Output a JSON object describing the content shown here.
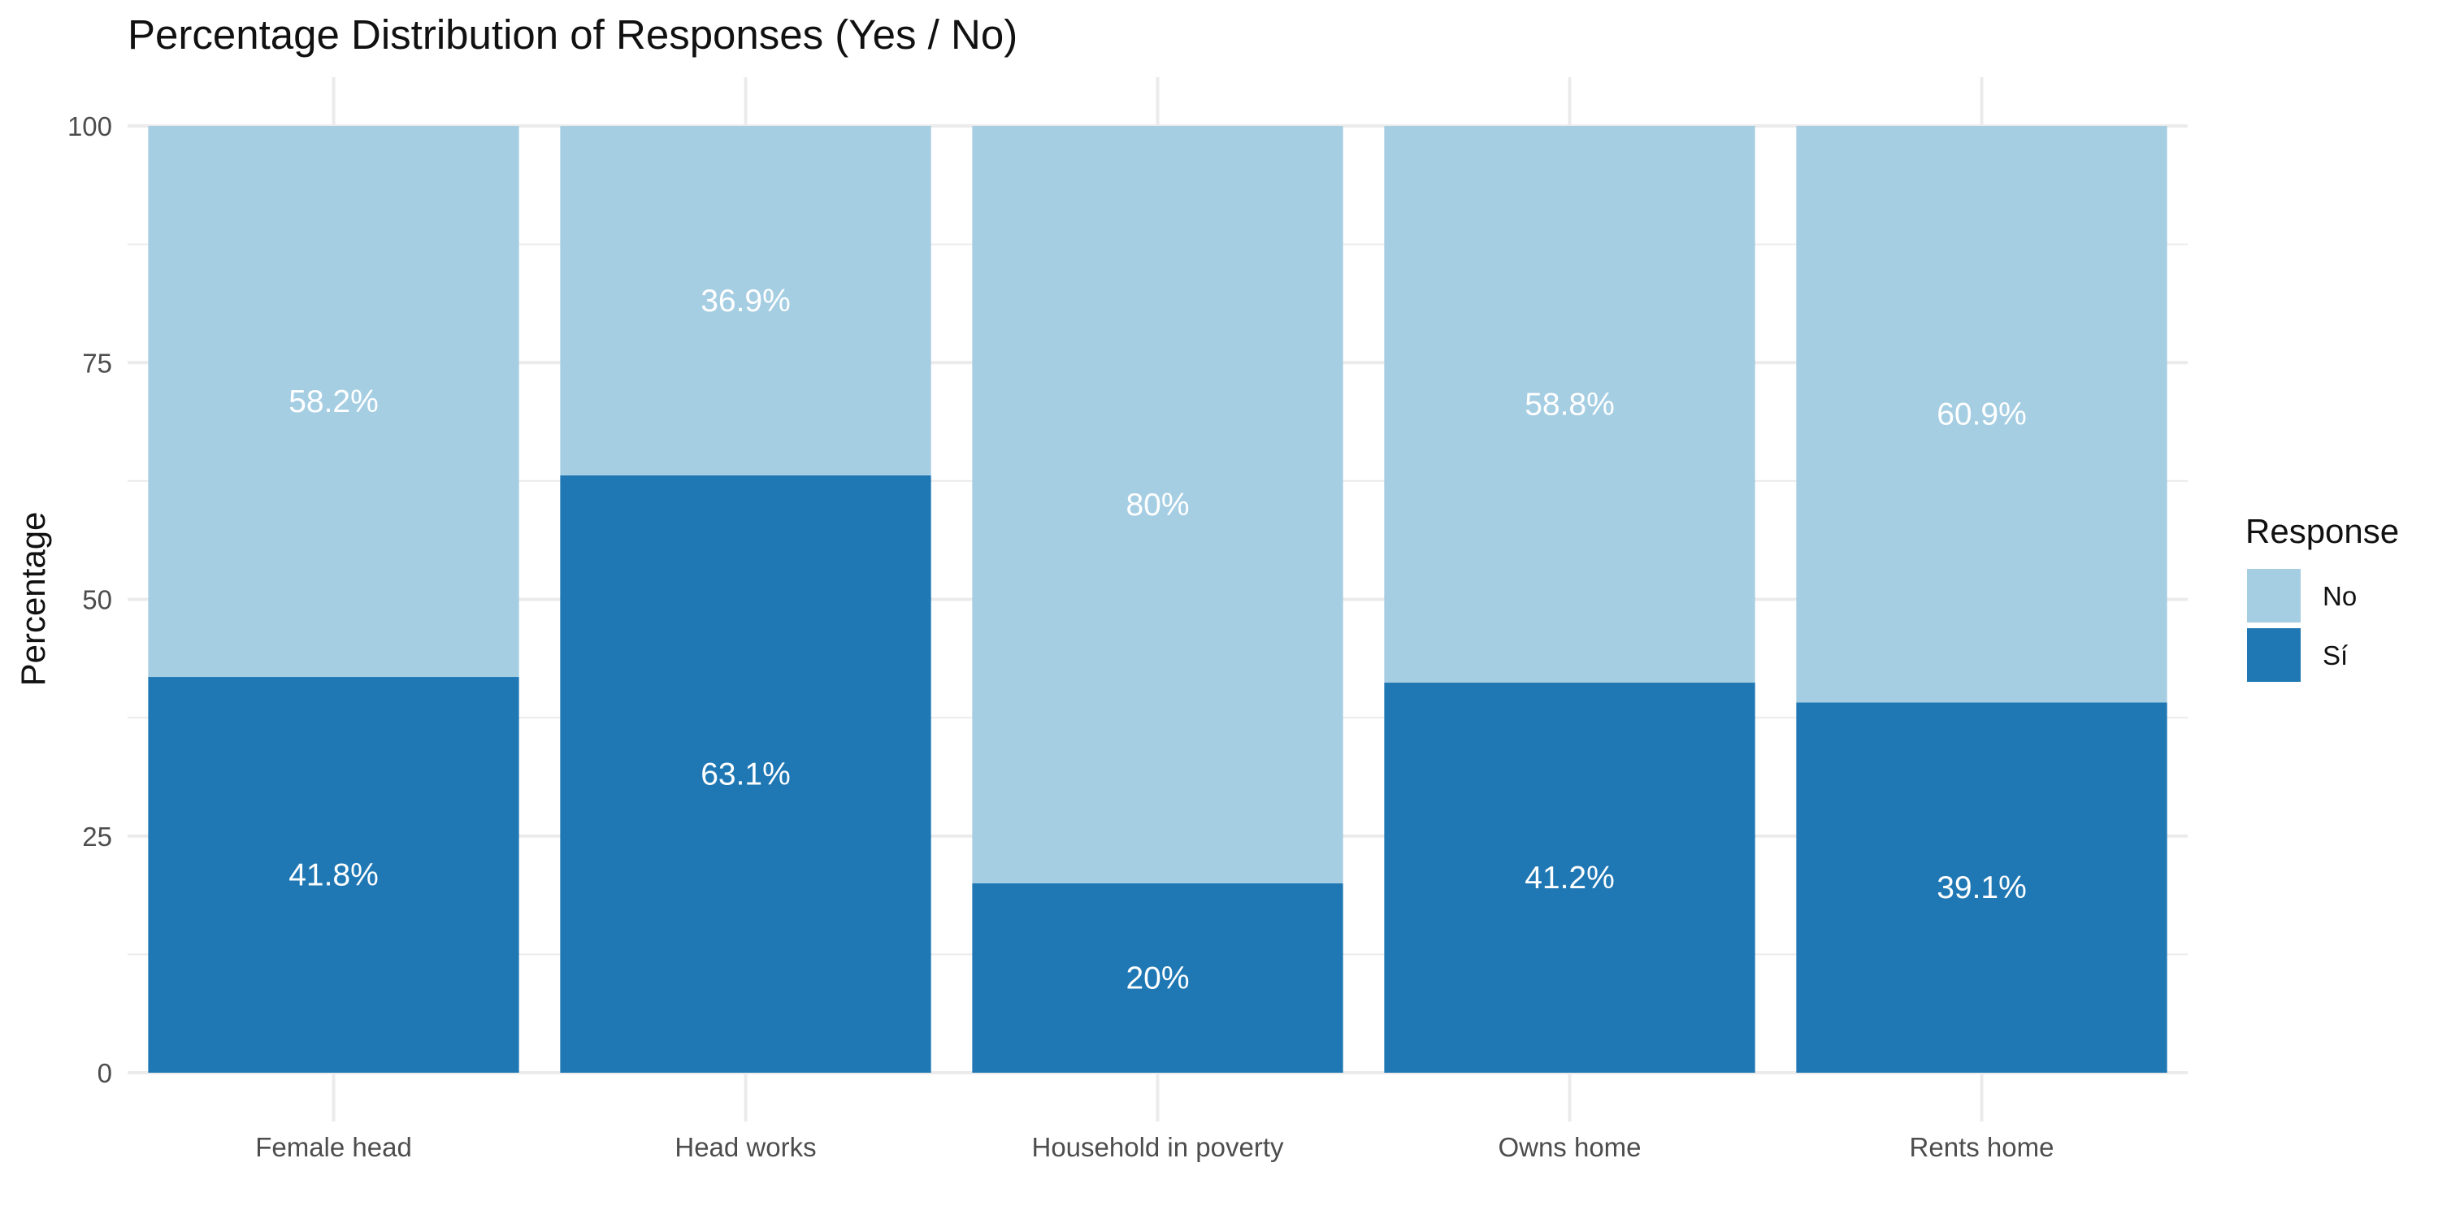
{
  "chart_data": {
    "type": "bar",
    "stacked": true,
    "title": "Percentage Distribution of Responses (Yes / No)",
    "xlabel": "",
    "ylabel": "Percentage",
    "categories": [
      "Female head",
      "Head works",
      "Household in poverty",
      "Owns home",
      "Rents home"
    ],
    "ylim": [
      0,
      100
    ],
    "yticks": [
      0,
      25,
      50,
      75,
      100
    ],
    "grid": true,
    "legend": {
      "title": "Response",
      "placement": "right",
      "entries": [
        "No",
        "Sí"
      ]
    },
    "series": [
      {
        "name": "Sí",
        "color": "#1f78b4",
        "values": [
          41.8,
          63.1,
          20,
          41.2,
          39.1
        ],
        "labels": [
          "41.8%",
          "63.1%",
          "20%",
          "41.2%",
          "39.1%"
        ]
      },
      {
        "name": "No",
        "color": "#a6cee3",
        "values": [
          58.2,
          36.9,
          80,
          58.8,
          60.9
        ],
        "labels": [
          "58.2%",
          "36.9%",
          "80%",
          "58.8%",
          "60.9%"
        ]
      }
    ]
  }
}
